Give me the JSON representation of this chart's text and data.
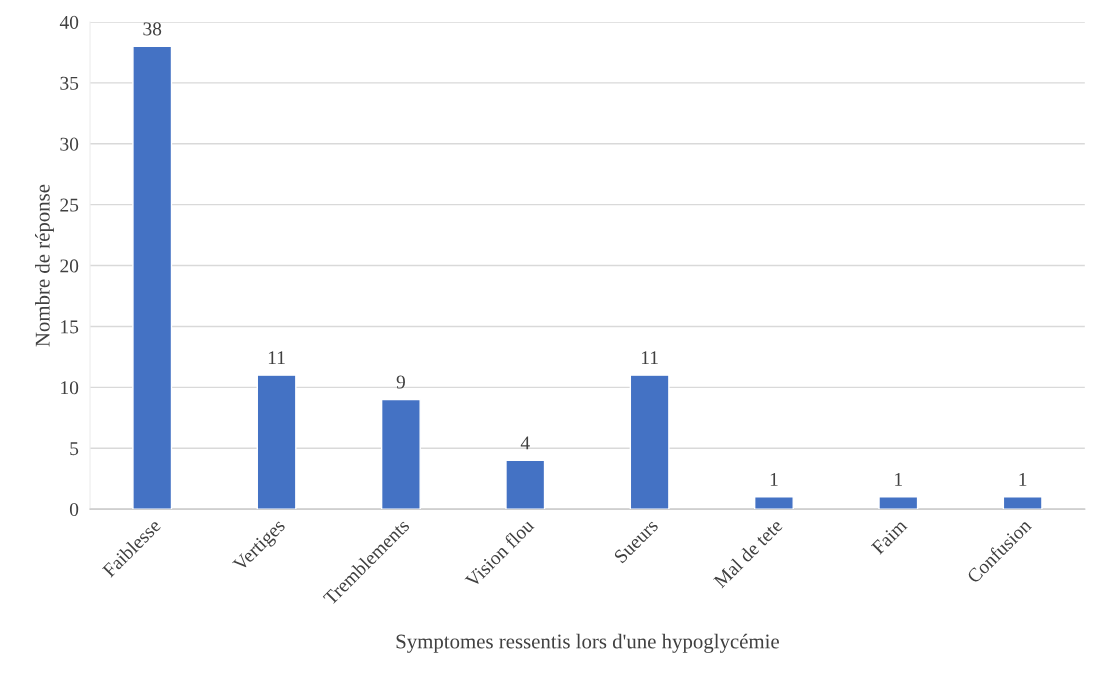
{
  "chart_data": {
    "type": "bar",
    "xlabel": "Symptomes ressentis lors d'une hypoglycémie",
    "ylabel": "Nombre de réponse",
    "categories": [
      "Faiblesse",
      "Vertiges",
      "Tremblements",
      "Vision flou",
      "Sueurs",
      "Mal de tete",
      "Faim",
      "Confusion"
    ],
    "values": [
      38,
      11,
      9,
      4,
      11,
      1,
      1,
      1
    ],
    "color": "#4472c4",
    "ylim": [
      0,
      40
    ],
    "yticks": [
      0,
      5,
      10,
      15,
      20,
      25,
      30,
      35,
      40
    ],
    "grid": "y",
    "data_labels": true
  }
}
